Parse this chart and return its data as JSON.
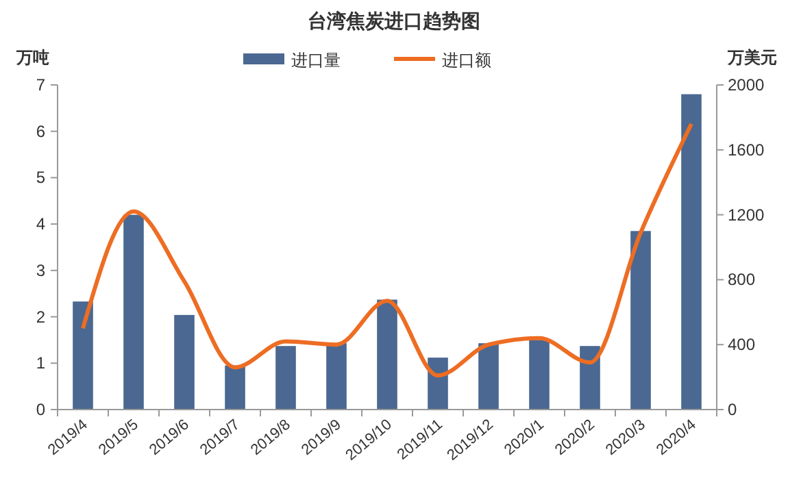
{
  "chart_data": {
    "type": "bar",
    "title": "台湾焦炭进口趋势图",
    "ylabel": "万吨",
    "y2label": "万美元",
    "categories": [
      "2019/4",
      "2019/5",
      "2019/6",
      "2019/7",
      "2019/8",
      "2019/9",
      "2019/10",
      "2019/11",
      "2019/12",
      "2020/1",
      "2020/2",
      "2020/3",
      "2020/4"
    ],
    "series": [
      {
        "name": "进口量",
        "color": "#4a6891",
        "values": [
          2.33,
          4.2,
          2.04,
          0.95,
          1.37,
          1.43,
          2.37,
          1.12,
          1.43,
          1.5,
          1.37,
          3.85,
          6.8
        ]
      },
      {
        "name": "进口额",
        "type": "line",
        "axis": "y2",
        "color": "#ed6d23",
        "values": [
          500,
          1220,
          790,
          260,
          420,
          400,
          670,
          210,
          400,
          440,
          290,
          1090,
          1760
        ]
      }
    ],
    "ylim": [
      0,
      7
    ],
    "yticks": [
      0,
      1,
      2,
      3,
      4,
      5,
      6,
      7
    ],
    "y2lim": [
      0,
      2000
    ],
    "y2ticks": [
      0,
      400,
      800,
      1200,
      1600,
      2000
    ],
    "grid": false,
    "legend": "top",
    "marker": "none",
    "line_style": "solid"
  }
}
